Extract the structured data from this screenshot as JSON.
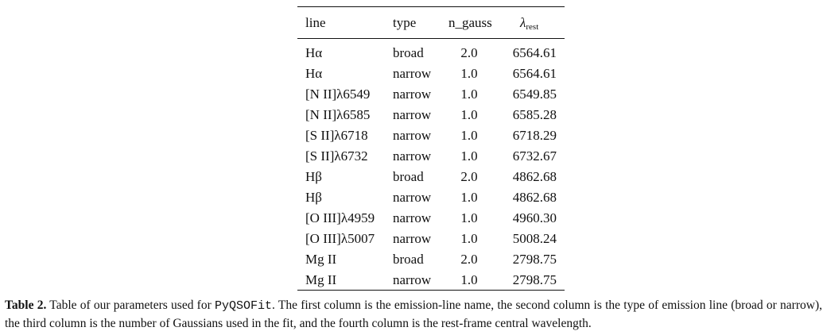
{
  "table": {
    "headers": {
      "line": "line",
      "type": "type",
      "n_gauss": "n_gauss",
      "lambda_symbol": "λ",
      "lambda_sub": "rest"
    },
    "rows": [
      {
        "line": "Hα",
        "type": "broad",
        "n_gauss": "2.0",
        "lambda_rest": "6564.61"
      },
      {
        "line": "Hα",
        "type": "narrow",
        "n_gauss": "1.0",
        "lambda_rest": "6564.61"
      },
      {
        "line": "[N II]λ6549",
        "type": "narrow",
        "n_gauss": "1.0",
        "lambda_rest": "6549.85"
      },
      {
        "line": "[N II]λ6585",
        "type": "narrow",
        "n_gauss": "1.0",
        "lambda_rest": "6585.28"
      },
      {
        "line": "[S II]λ6718",
        "type": "narrow",
        "n_gauss": "1.0",
        "lambda_rest": "6718.29"
      },
      {
        "line": "[S II]λ6732",
        "type": "narrow",
        "n_gauss": "1.0",
        "lambda_rest": "6732.67"
      },
      {
        "line": "Hβ",
        "type": "broad",
        "n_gauss": "2.0",
        "lambda_rest": "4862.68"
      },
      {
        "line": "Hβ",
        "type": "narrow",
        "n_gauss": "1.0",
        "lambda_rest": "4862.68"
      },
      {
        "line": "[O III]λ4959",
        "type": "narrow",
        "n_gauss": "1.0",
        "lambda_rest": "4960.30"
      },
      {
        "line": "[O III]λ5007",
        "type": "narrow",
        "n_gauss": "1.0",
        "lambda_rest": "5008.24"
      },
      {
        "line": "Mg II",
        "type": "broad",
        "n_gauss": "2.0",
        "lambda_rest": "2798.75"
      },
      {
        "line": "Mg II",
        "type": "narrow",
        "n_gauss": "1.0",
        "lambda_rest": "2798.75"
      }
    ]
  },
  "caption": {
    "label": "Table 2.",
    "text_before": " Table of our parameters used for ",
    "code": "PyQSOFit",
    "text_after": ". The first column is the emission-line name, the second column is the type of emission line (broad or narrow), the third column is the number of Gaussians used in the fit, and the fourth column is the rest-frame central wavelength."
  }
}
